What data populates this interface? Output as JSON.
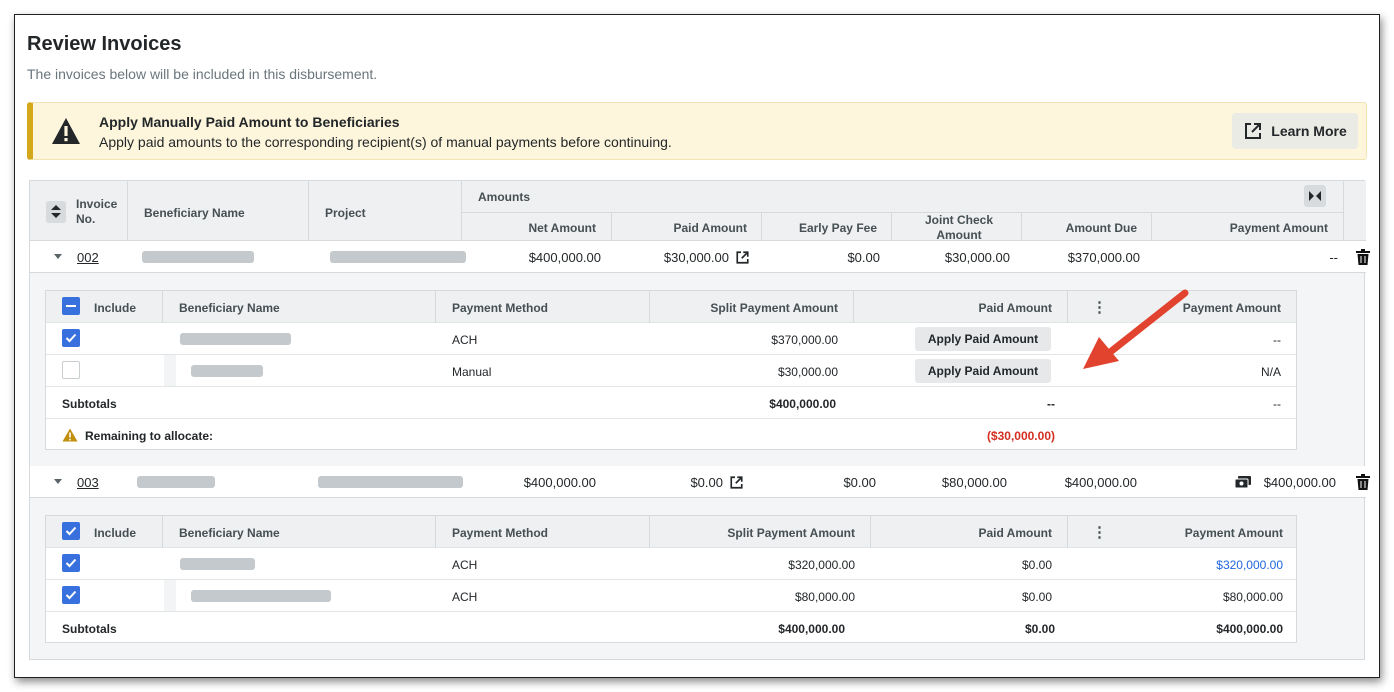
{
  "page": {
    "title": "Review Invoices",
    "subtitle": "The invoices below will be included in this disbursement."
  },
  "banner": {
    "title": "Apply Manually Paid Amount to Beneficiaries",
    "text": "Apply paid amounts to the corresponding recipient(s) of manual payments before continuing.",
    "learn_more": "Learn More",
    "color": "#d4a81b"
  },
  "table": {
    "headers": {
      "invoice_no": "Invoice No.",
      "beneficiary_name": "Beneficiary Name",
      "project": "Project",
      "amounts": "Amounts",
      "net_amount": "Net Amount",
      "paid_amount": "Paid Amount",
      "early_pay_fee": "Early Pay Fee",
      "joint_check_amount": "Joint Check Amount",
      "amount_due": "Amount Due",
      "payment_amount": "Payment Amount"
    },
    "invoices": [
      {
        "invoice_no": "002",
        "net_amount": "$400,000.00",
        "paid_amount": "$30,000.00",
        "early_pay_fee": "$0.00",
        "joint_check_amount": "$30,000.00",
        "amount_due": "$370,000.00",
        "payment_amount": "--",
        "sub": {
          "headers": {
            "include": "Include",
            "beneficiary_name": "Beneficiary Name",
            "payment_method": "Payment Method",
            "split_payment_amount": "Split Payment Amount",
            "paid_amount": "Paid Amount",
            "payment_amount": "Payment Amount"
          },
          "rows": [
            {
              "method": "ACH",
              "split": "$370,000.00",
              "paid_button": "Apply Paid Amount",
              "payment": "--"
            },
            {
              "method": "Manual",
              "split": "$30,000.00",
              "paid_button": "Apply Paid Amount",
              "payment": "N/A"
            }
          ],
          "subtotals": {
            "label": "Subtotals",
            "split": "$400,000.00",
            "paid": "--",
            "payment": "--"
          },
          "remaining": {
            "label": "Remaining to allocate:",
            "value": "($30,000.00)"
          }
        }
      },
      {
        "invoice_no": "003",
        "net_amount": "$400,000.00",
        "paid_amount": "$0.00",
        "early_pay_fee": "$0.00",
        "joint_check_amount": "$80,000.00",
        "amount_due": "$400,000.00",
        "payment_amount": "$400,000.00",
        "sub": {
          "headers": {
            "include": "Include",
            "beneficiary_name": "Beneficiary Name",
            "payment_method": "Payment Method",
            "split_payment_amount": "Split Payment Amount",
            "paid_amount": "Paid Amount",
            "payment_amount": "Payment Amount"
          },
          "rows": [
            {
              "method": "ACH",
              "split": "$320,000.00",
              "paid": "$0.00",
              "payment": "$320,000.00"
            },
            {
              "method": "ACH",
              "split": "$80,000.00",
              "paid": "$0.00",
              "payment": "$80,000.00"
            }
          ],
          "subtotals": {
            "label": "Subtotals",
            "split": "$400,000.00",
            "paid": "$0.00",
            "payment": "$400,000.00"
          }
        }
      }
    ]
  },
  "colors": {
    "link": "#2066df",
    "checkbox": "#3870dd",
    "negative": "#d42e20",
    "annotation_arrow": "#e2432f"
  }
}
